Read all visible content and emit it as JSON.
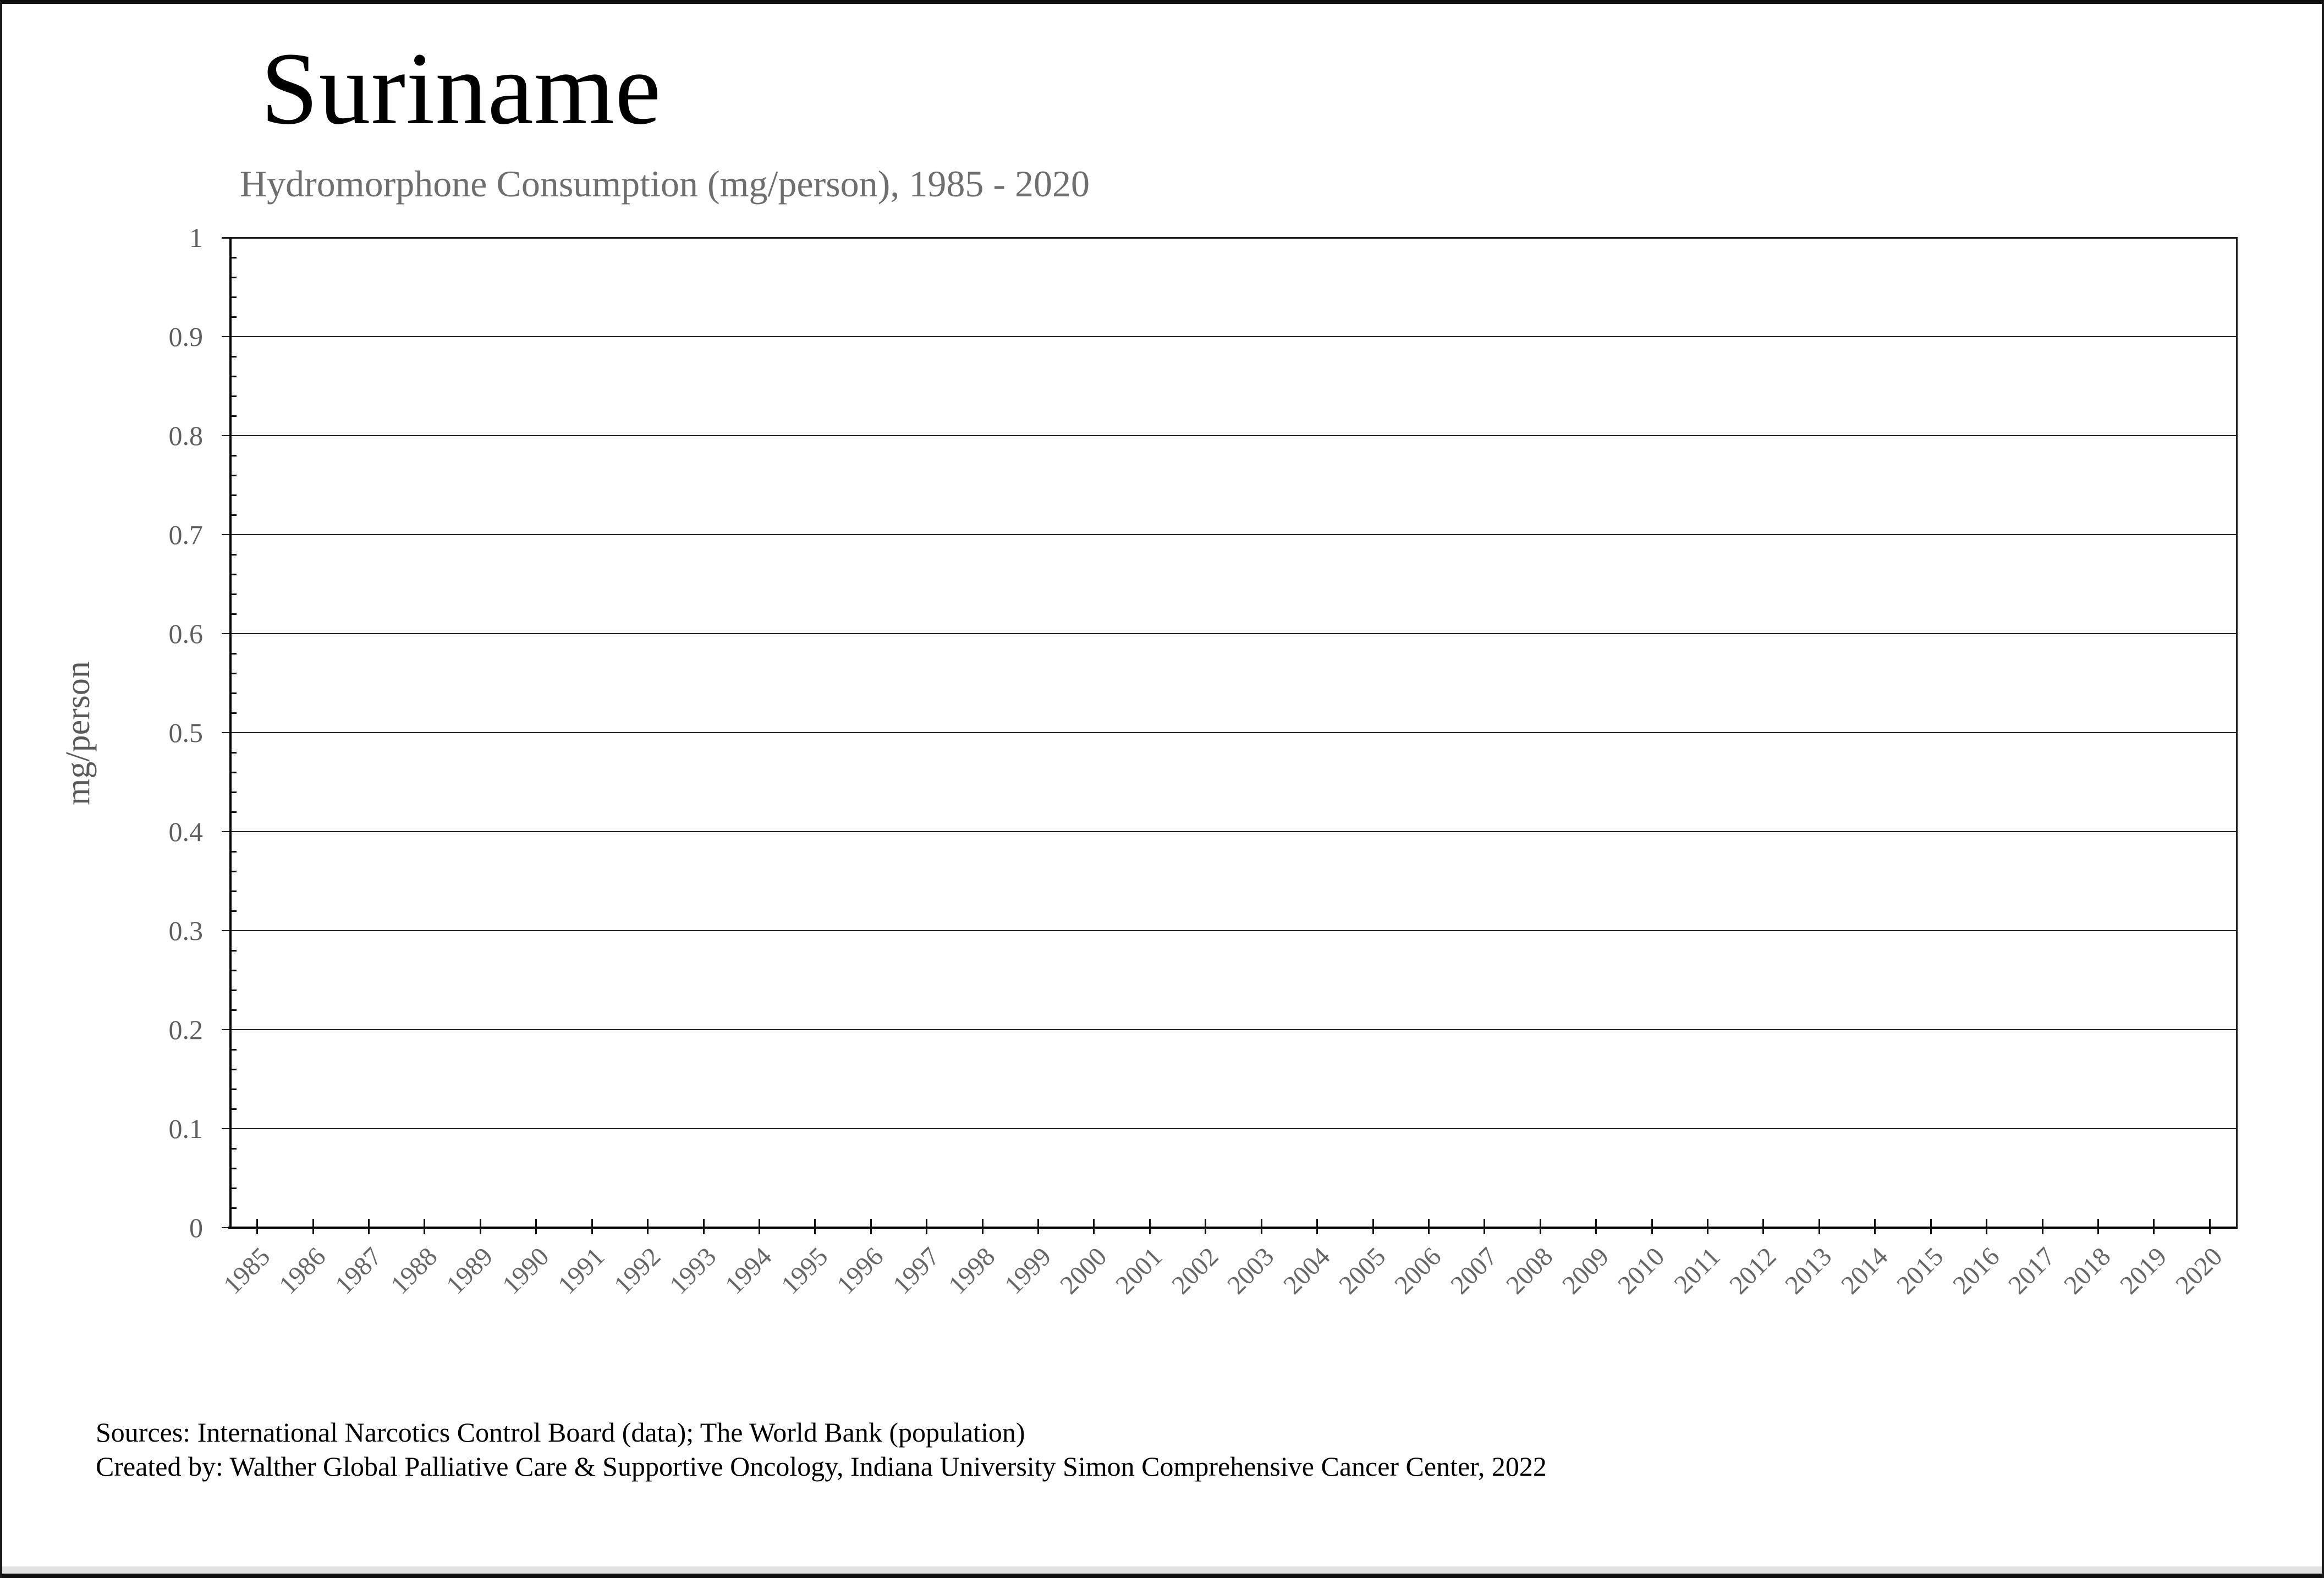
{
  "header": {
    "title": "Suriname",
    "subtitle": "Hydromorphone Consumption (mg/person), 1985 - 2020"
  },
  "chart_data": {
    "type": "line",
    "title": "Hydromorphone Consumption (mg/person), 1985 - 2020",
    "xlabel": "",
    "ylabel": "mg/person",
    "x": [
      "1985",
      "1986",
      "1987",
      "1988",
      "1989",
      "1990",
      "1991",
      "1992",
      "1993",
      "1994",
      "1995",
      "1996",
      "1997",
      "1998",
      "1999",
      "2000",
      "2001",
      "2002",
      "2003",
      "2004",
      "2005",
      "2006",
      "2007",
      "2008",
      "2009",
      "2010",
      "2011",
      "2012",
      "2013",
      "2014",
      "2015",
      "2016",
      "2017",
      "2018",
      "2019",
      "2020"
    ],
    "series": [
      {
        "name": "Hydromorphone Consumption (mg/person)",
        "values": [
          0,
          0,
          0,
          0,
          0,
          0,
          0,
          0,
          0,
          0,
          0,
          0,
          0,
          0,
          0,
          0,
          0,
          0,
          0,
          0,
          0,
          0,
          0,
          0,
          0,
          0,
          0,
          0,
          0,
          0,
          0,
          0,
          0,
          0,
          0,
          0
        ]
      }
    ],
    "ylim": [
      0,
      1
    ],
    "y_tick_labels": [
      "0",
      "0.1",
      "0.2",
      "0.3",
      "0.4",
      "0.5",
      "0.6",
      "0.7",
      "0.8",
      "0.9",
      "1"
    ],
    "grid": "horizontal-major",
    "legend_position": "none"
  },
  "footer": {
    "sources_line": "Sources: International Narcotics Control Board (data); The World Bank (population)",
    "created_line": "Created by: Walther Global Palliative Care & Supportive Oncology, Indiana University Simon Comprehensive Cancer Center, 2022"
  },
  "colors": {
    "background": "#ffffff",
    "title_text": "#000000",
    "subtitle_text": "#6e6e6e",
    "axis_label_text": "#5f5f5f",
    "gridline": "#262626",
    "axis_line": "#000000",
    "frame_edge": "#0f0f0f"
  }
}
